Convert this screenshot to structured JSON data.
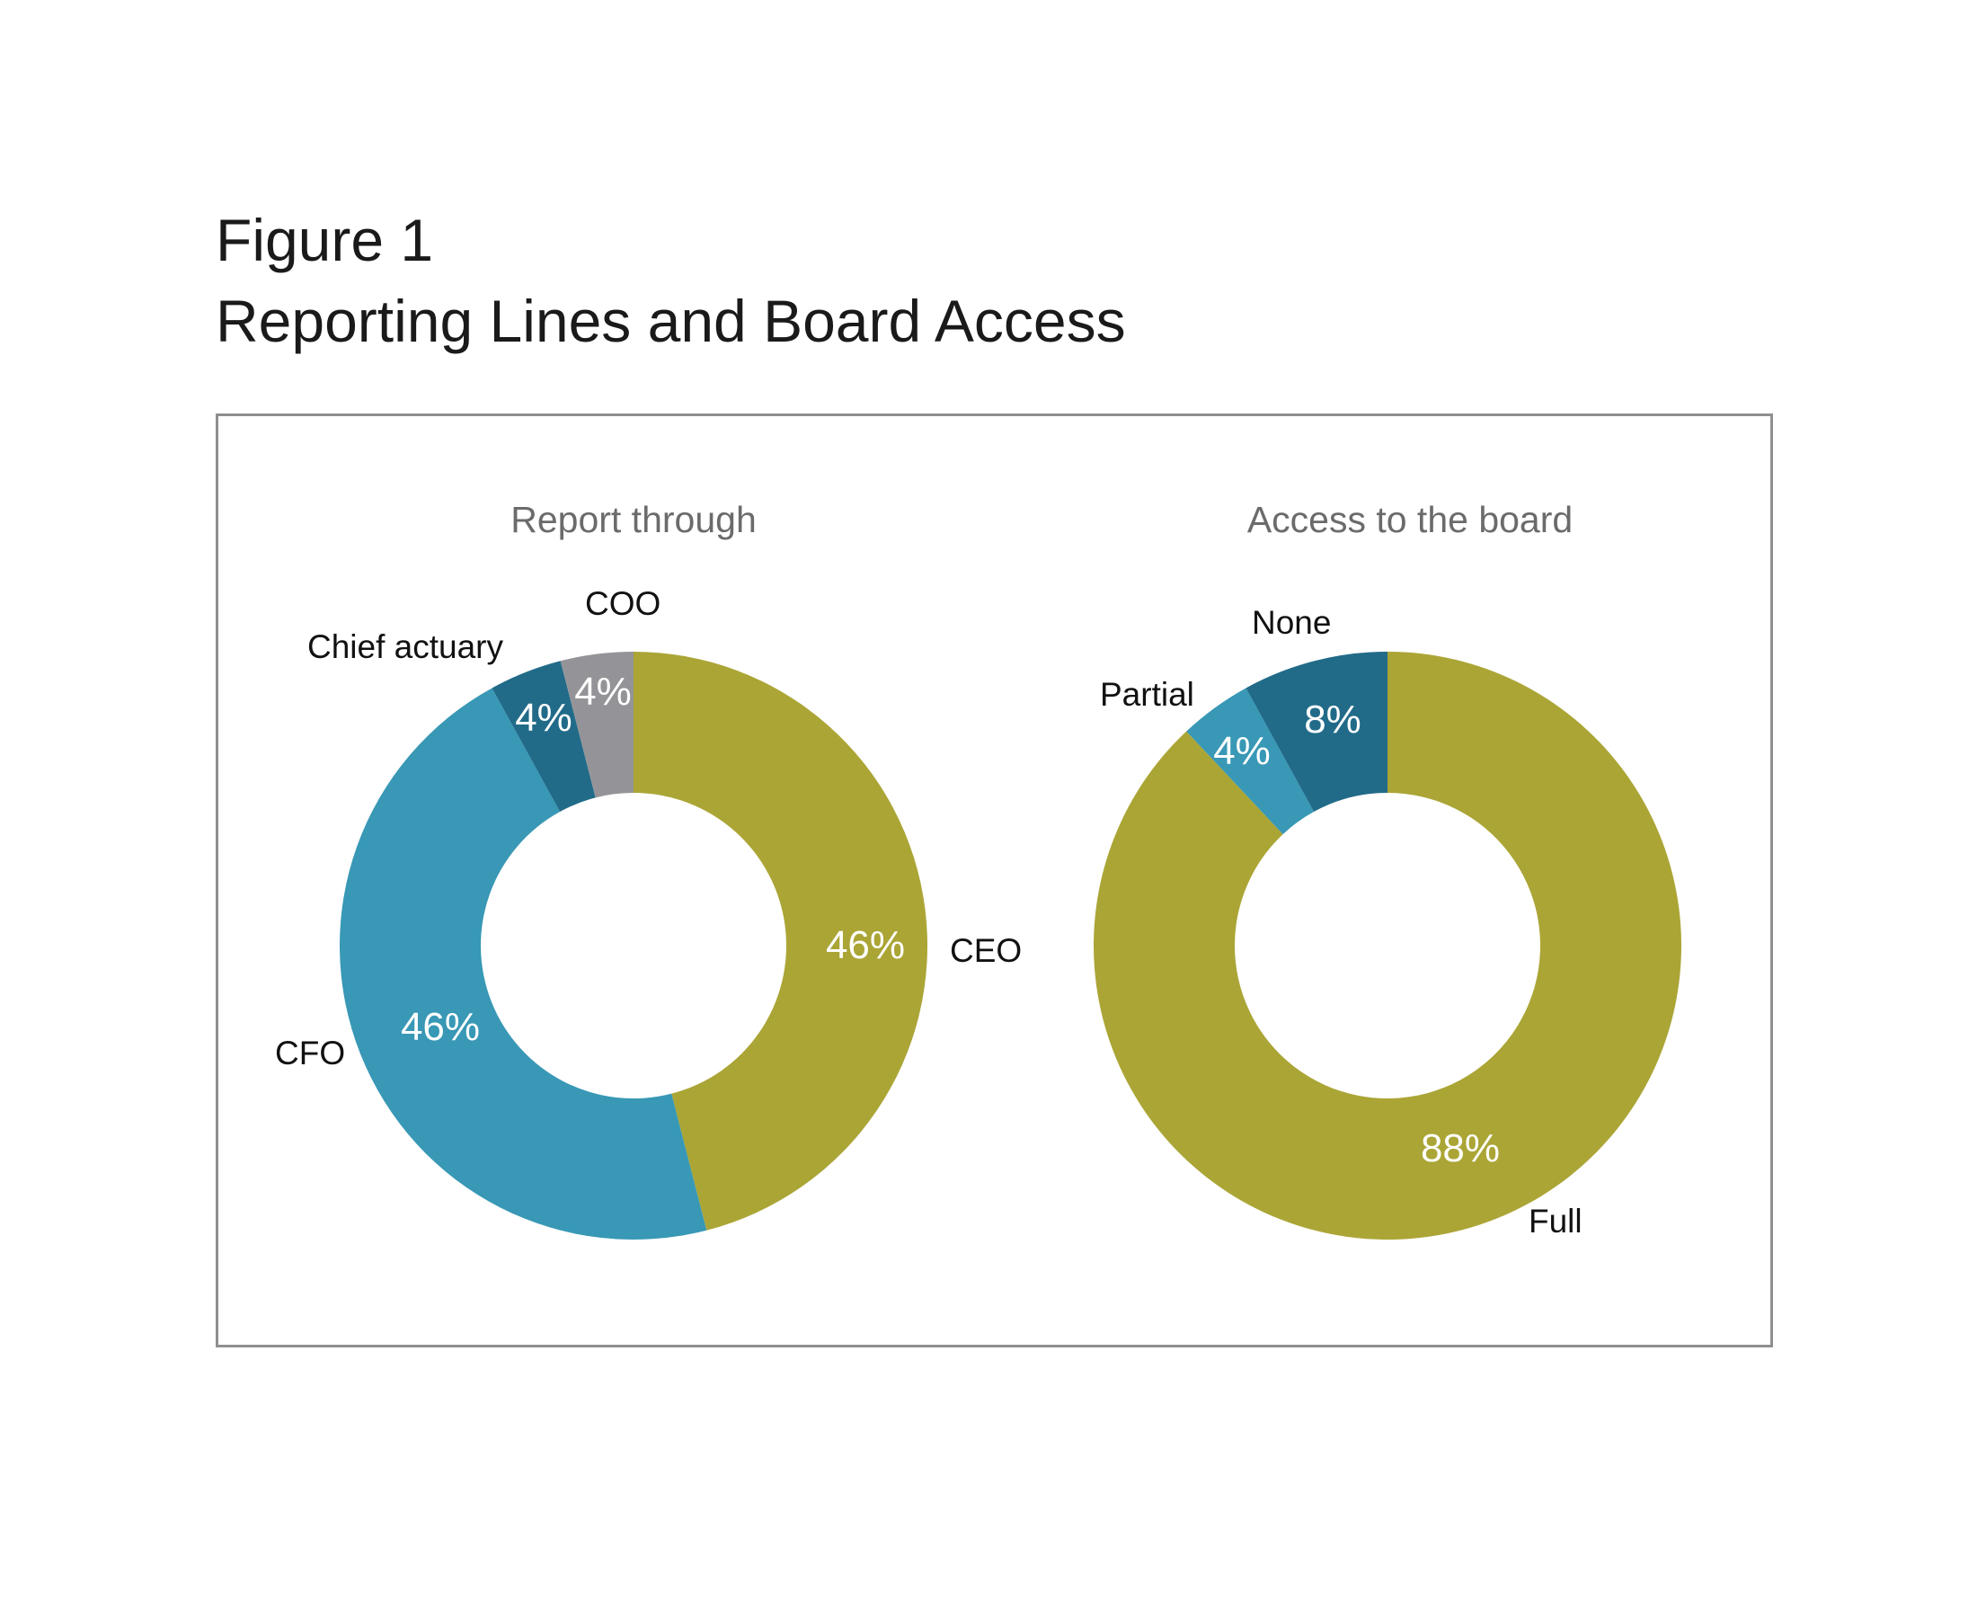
{
  "figure": {
    "number": "Figure 1",
    "title": "Reporting Lines and Board Access"
  },
  "chart_data": [
    {
      "type": "pie",
      "style": "donut",
      "title": "Report through",
      "categories": [
        "CEO",
        "CFO",
        "Chief actuary",
        "COO"
      ],
      "values": [
        46,
        46,
        4,
        4
      ],
      "value_labels": [
        "46%",
        "46%",
        "4%",
        "4%"
      ],
      "colors": [
        "#aba536",
        "#3898b5",
        "#216b89",
        "#949498"
      ]
    },
    {
      "type": "pie",
      "style": "donut",
      "title": "Access to the board",
      "categories": [
        "Full",
        "Partial",
        "None"
      ],
      "values": [
        88,
        4,
        8
      ],
      "value_labels": [
        "88%",
        "4%",
        "8%"
      ],
      "colors": [
        "#aba536",
        "#3898b5",
        "#216b89"
      ]
    }
  ]
}
